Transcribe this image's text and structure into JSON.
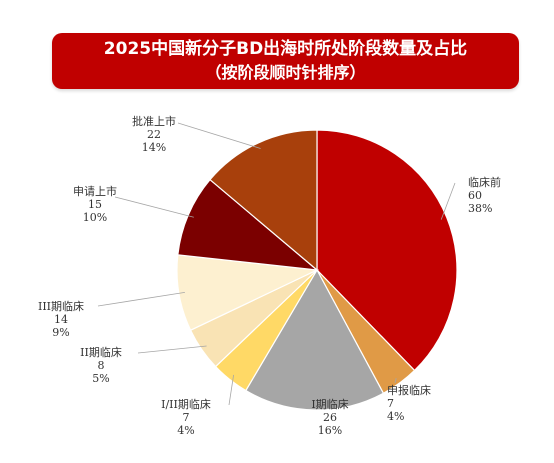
{
  "title": {
    "line1": "2025中国新分子BD出海时所处阶段数量及占比",
    "line2": "（按阶段顺时针排序）",
    "background": "#c00000"
  },
  "chart_data": {
    "type": "pie",
    "direction": "clockwise",
    "start": "12 o'clock",
    "slices": [
      {
        "label": "临床前",
        "value": 60,
        "percent": "38%",
        "color": "#c00000"
      },
      {
        "label": "申报临床",
        "value": 7,
        "percent": "4%",
        "color": "#e09a46"
      },
      {
        "label": "I期临床",
        "value": 26,
        "percent": "16%",
        "color": "#a6a6a6"
      },
      {
        "label": "I/II期临床",
        "value": 7,
        "percent": "4%",
        "color": "#ffd966"
      },
      {
        "label": "II期临床",
        "value": 8,
        "percent": "5%",
        "color": "#f9e3b4"
      },
      {
        "label": "III期临床",
        "value": 14,
        "percent": "9%",
        "color": "#fdf0d0"
      },
      {
        "label": "申请上市",
        "value": 15,
        "percent": "10%",
        "color": "#7b0000"
      },
      {
        "label": "批准上市",
        "value": 22,
        "percent": "14%",
        "color": "#a8400c"
      }
    ]
  }
}
